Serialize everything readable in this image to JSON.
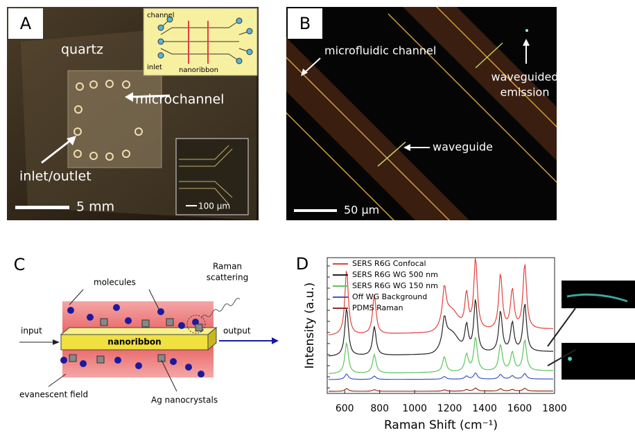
{
  "panels": {
    "a": {
      "label": "A",
      "quartz": "quartz",
      "microchannel": "microchannel",
      "inlet_outlet": "inlet/outlet",
      "scale": "5 mm",
      "inset": {
        "channel": "channel",
        "inlet": "inlet",
        "nanoribbon": "nanoribbon"
      },
      "zoom_scale": "100 µm"
    },
    "b": {
      "label": "B",
      "channel": "microfluidic channel",
      "emission": [
        "waveguided",
        "emission"
      ],
      "waveguide": "waveguide",
      "scale": "50 µm"
    },
    "c": {
      "label": "C",
      "molecules": "molecules",
      "raman": [
        "Raman",
        "scattering"
      ],
      "input": "input",
      "nanoribbon": "nanoribbon",
      "output": "output",
      "field": "evanescent field",
      "ag": "Ag nanocrystals"
    },
    "d": {
      "label": "D",
      "y_label": "Intensity (a.u.)",
      "x_label": "Raman Shift (cm⁻¹)",
      "xlim": [
        500,
        1800
      ],
      "xticks": [
        600,
        800,
        1000,
        1200,
        1400,
        1600,
        1800
      ],
      "legend": [
        {
          "name": "SERS R6G Confocal",
          "color": "#e2403a"
        },
        {
          "name": "SERS R6G WG 500 nm",
          "color": "#222222"
        },
        {
          "name": "SERS R6G WG 150 nm",
          "color": "#5cc45c"
        },
        {
          "name": "Off WG Background",
          "color": "#3a58c4"
        },
        {
          "name": "PDMS Raman",
          "color": "#8b2e1e"
        }
      ]
    }
  }
}
